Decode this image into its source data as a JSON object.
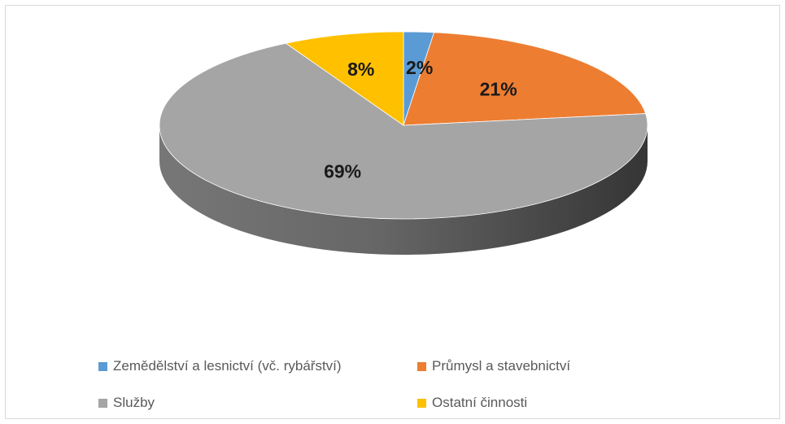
{
  "chart_data": {
    "type": "pie",
    "style": "3d",
    "categories": [
      "Zemědělství a lesnictví (vč. rybářství)",
      "Průmysl a stavebnictví",
      "Služby",
      "Ostatní činnosti"
    ],
    "values": [
      2,
      21,
      69,
      8
    ],
    "labels": [
      "2%",
      "21%",
      "69%",
      "8%"
    ],
    "colors": [
      "#5b9bd5",
      "#ed7d31",
      "#a5a5a5",
      "#ffc000"
    ],
    "legend_position": "bottom"
  }
}
